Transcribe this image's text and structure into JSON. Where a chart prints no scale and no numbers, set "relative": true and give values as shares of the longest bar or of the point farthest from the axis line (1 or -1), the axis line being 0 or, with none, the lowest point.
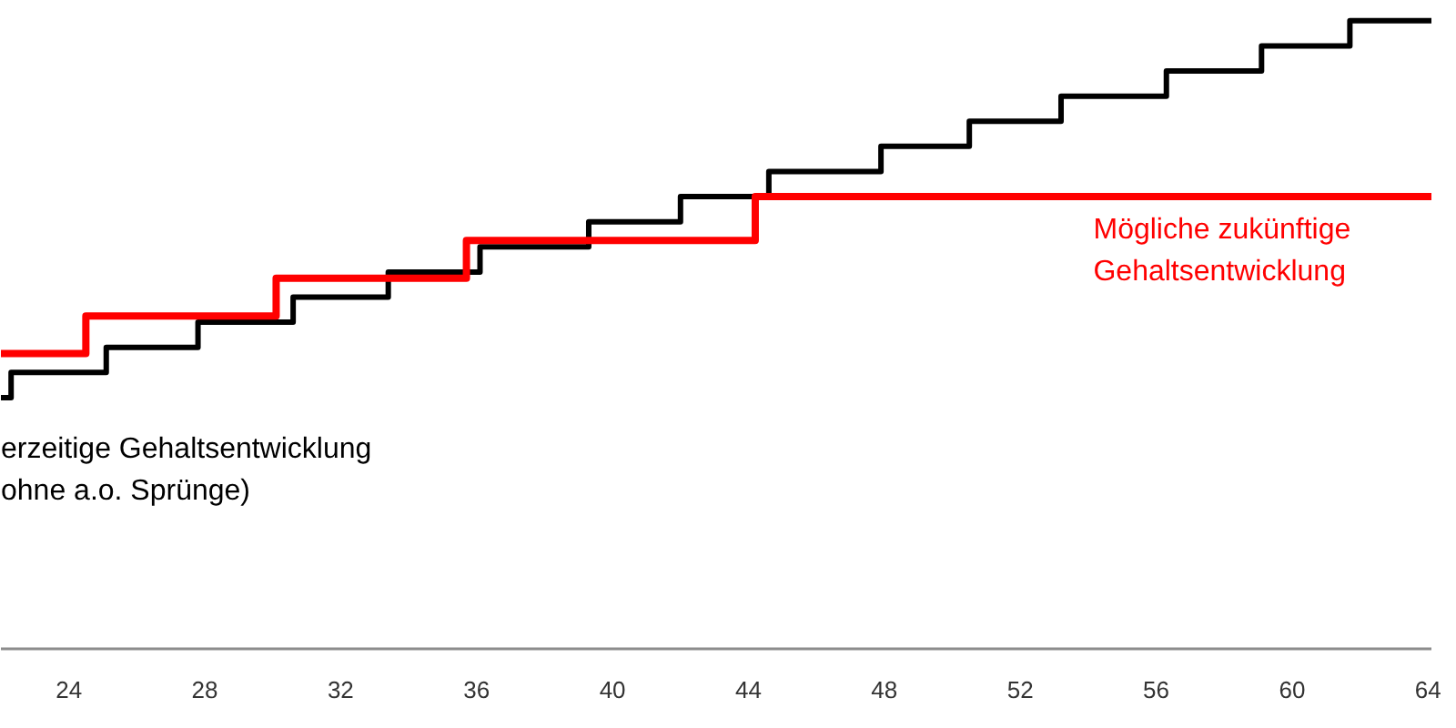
{
  "chart_data": {
    "type": "step",
    "relative": true,
    "xlim": [
      22,
      64.1
    ],
    "xticks": [
      24,
      28,
      32,
      36,
      40,
      44,
      48,
      52,
      56,
      60,
      64
    ],
    "series": [
      {
        "name": "erzeitige Gehaltsentwicklung\nohne a.o. Sprünge)",
        "color": "#000000",
        "x": [
          22,
          22.3,
          25.1,
          27.8,
          30.6,
          33.4,
          36.1,
          39.3,
          42.0,
          44.6,
          47.9,
          50.5,
          53.2,
          56.3,
          59.1,
          61.7,
          64.1
        ],
        "values": [
          0.4,
          0.44,
          0.48,
          0.52,
          0.56,
          0.6,
          0.64,
          0.68,
          0.72,
          0.76,
          0.8,
          0.84,
          0.88,
          0.92,
          0.96,
          1.0,
          1.0
        ]
      },
      {
        "name": "Mögliche zukünftige\nGehaltsentwicklung",
        "color": "#ff0000",
        "x": [
          22,
          24.5,
          30.1,
          35.7,
          44.2,
          64.1
        ],
        "values": [
          0.47,
          0.53,
          0.59,
          0.65,
          0.72,
          0.72
        ]
      }
    ]
  }
}
